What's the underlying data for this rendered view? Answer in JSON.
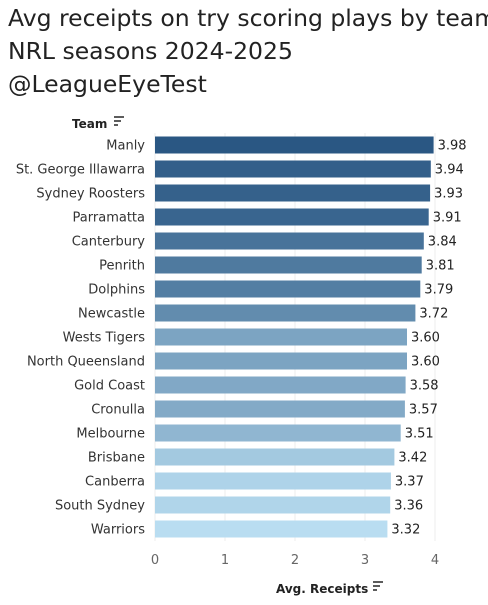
{
  "header": {
    "title_lines": [
      "Avg receipts on try scoring plays by team",
      "NRL seasons 2024-2025",
      "@LeagueEyeTest"
    ]
  },
  "colors": {
    "bar_dark": "#2a5783",
    "bar_light": "#b9ddf1",
    "grid": "#eeeeee",
    "sort_icon": "#333333"
  },
  "icons": {
    "team_sort": "sort-descending-icon",
    "receipts_sort": "sort-descending-icon"
  },
  "chart_data": {
    "type": "bar",
    "orientation": "horizontal",
    "title": "Avg receipts on try scoring plays by team",
    "subtitle": "NRL seasons 2024-2025 @LeagueEyeTest",
    "ylabel": "Team",
    "xlabel": "Avg. Receipts",
    "xlim": [
      0,
      4.5
    ],
    "xticks": [
      0,
      1,
      2,
      3,
      4
    ],
    "grid": true,
    "legend": "none",
    "categories": [
      "Manly",
      "St. George Illawarra",
      "Sydney Roosters",
      "Parramatta",
      "Canterbury",
      "Penrith",
      "Dolphins",
      "Newcastle",
      "Wests Tigers",
      "North Queensland",
      "Gold Coast",
      "Cronulla",
      "Melbourne",
      "Brisbane",
      "Canberra",
      "South Sydney",
      "Warriors"
    ],
    "values": [
      3.98,
      3.94,
      3.93,
      3.91,
      3.84,
      3.81,
      3.79,
      3.72,
      3.6,
      3.6,
      3.58,
      3.57,
      3.51,
      3.42,
      3.37,
      3.36,
      3.32
    ],
    "value_labels": [
      "3.98",
      "3.94",
      "3.93",
      "3.91",
      "3.84",
      "3.81",
      "3.79",
      "3.72",
      "3.60",
      "3.60",
      "3.58",
      "3.57",
      "3.51",
      "3.42",
      "3.37",
      "3.36",
      "3.32"
    ]
  }
}
